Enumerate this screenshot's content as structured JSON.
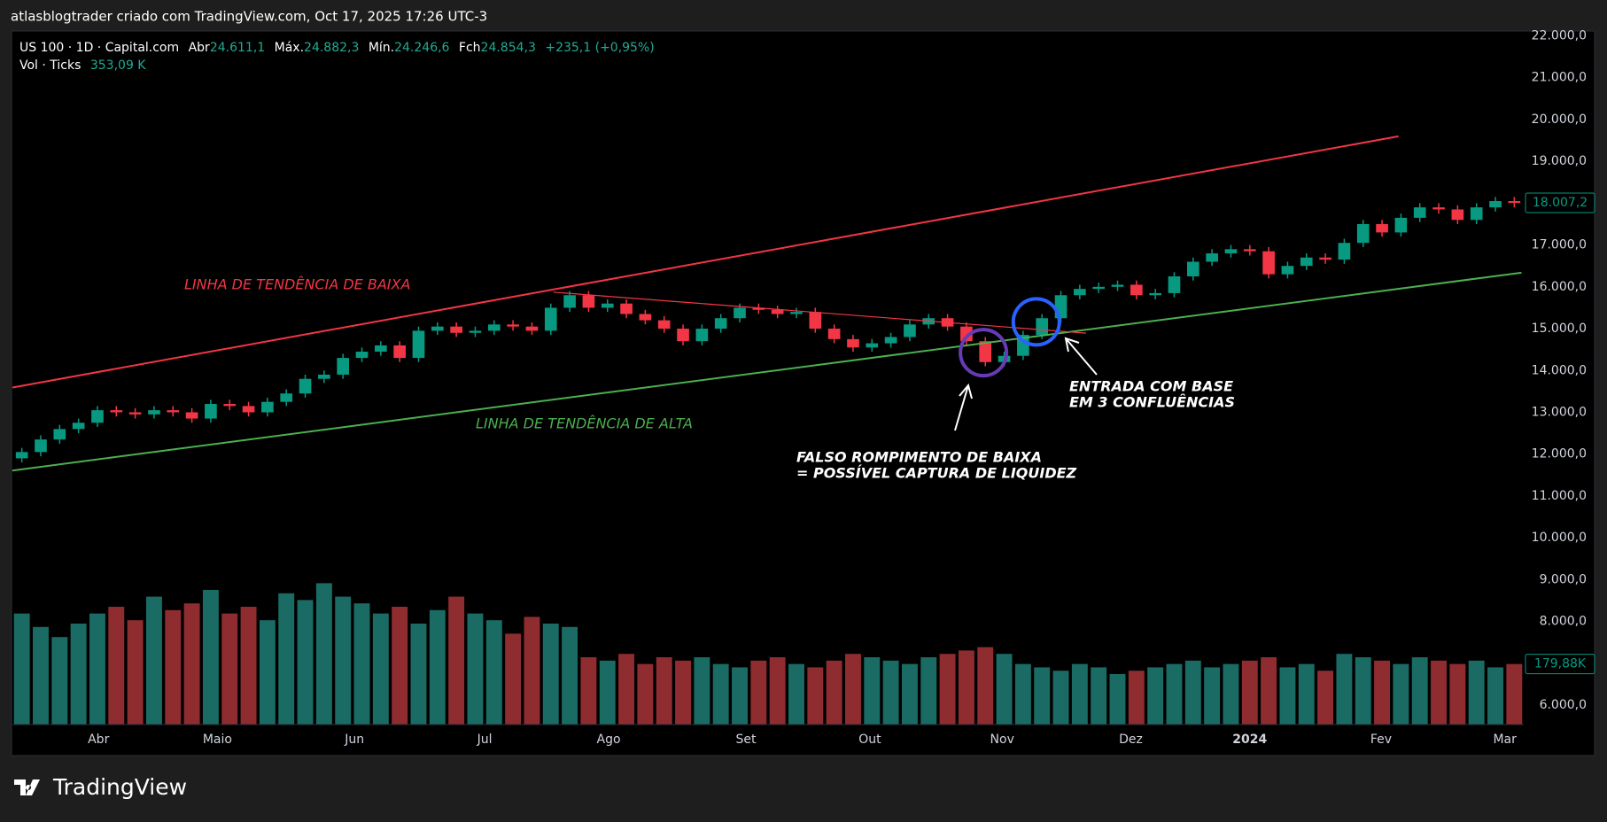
{
  "header": "atlasblogtrader criado com TradingView.com, Oct 17, 2025 17:26 UTC-3",
  "footer": "TradingView",
  "legend": {
    "symbol": "US 100 · 1D · Capital.com",
    "open_label": "Abr",
    "open": "24.611,1",
    "high_label": "Máx.",
    "high": "24.882,3",
    "low_label": "Mín.",
    "low": "24.246,6",
    "close_label": "Fch",
    "close": "24.854,3",
    "change": "+235,1 (+0,95%)",
    "volume_label": "Vol · Ticks",
    "volume": "353,09 K"
  },
  "chart_data": {
    "type": "candlestick",
    "up_color": "#089981",
    "down_color": "#f23645",
    "volume_up_color": "#1a6b64",
    "volume_down_color": "#8f2c30",
    "grid": false,
    "xlim": [
      0,
      80
    ],
    "xticks": [
      {
        "value": 4.56,
        "label": "Abr"
      },
      {
        "value": 10.85,
        "label": "Maio"
      },
      {
        "value": 18.11,
        "label": "Jun"
      },
      {
        "value": 25.0,
        "label": "Jul"
      },
      {
        "value": 31.56,
        "label": "Ago"
      },
      {
        "value": 38.83,
        "label": "Set"
      },
      {
        "value": 45.39,
        "label": "Out"
      },
      {
        "value": 52.39,
        "label": "Nov"
      },
      {
        "value": 59.2,
        "label": "Dez"
      },
      {
        "value": 65.5,
        "label": "2024"
      },
      {
        "value": 72.45,
        "label": "Fev"
      },
      {
        "value": 79.0,
        "label": "Mar"
      }
    ],
    "ylim": [
      6000,
      22000
    ],
    "yticks": [
      {
        "value": 22000,
        "label": "22.000,0"
      },
      {
        "value": 21000,
        "label": "21.000,0"
      },
      {
        "value": 20000,
        "label": "20.000,0"
      },
      {
        "value": 19000,
        "label": "19.000,0"
      },
      {
        "value": 18000,
        "label": "18.000,0"
      },
      {
        "value": 17000,
        "label": "17.000,0"
      },
      {
        "value": 16000,
        "label": "16.000,0"
      },
      {
        "value": 15000,
        "label": "15.000,0"
      },
      {
        "value": 14000,
        "label": "14.000,0"
      },
      {
        "value": 13000,
        "label": "13.000,0"
      },
      {
        "value": 12000,
        "label": "12.000,0"
      },
      {
        "value": 11000,
        "label": "11.000,0"
      },
      {
        "value": 10000,
        "label": "10.000,0"
      },
      {
        "value": 9000,
        "label": "9.000,0"
      },
      {
        "value": 8000,
        "label": "8.000,0"
      },
      {
        "value": 7000,
        "label": "7.000,0"
      },
      {
        "value": 6000,
        "label": "6.000,0"
      }
    ],
    "open": [
      11900,
      12050,
      12350,
      12600,
      12750,
      13050,
      13000,
      12950,
      13050,
      13000,
      12850,
      13200,
      13150,
      13000,
      13250,
      13450,
      13800,
      13900,
      14300,
      14450,
      14600,
      14300,
      14950,
      15050,
      14900,
      14950,
      15100,
      15050,
      14950,
      15500,
      15800,
      15500,
      15600,
      15350,
      15200,
      15000,
      14700,
      15000,
      15250,
      15500,
      15450,
      15350,
      15400,
      15000,
      14750,
      14550,
      14650,
      14800,
      15100,
      15250,
      15050,
      14700,
      14200,
      14350,
      14850,
      15250,
      15800,
      15950,
      16000,
      16050,
      15800,
      15850,
      16250,
      16600,
      16800,
      16900,
      16850,
      16300,
      16500,
      16700,
      16650,
      17050,
      17500,
      17300,
      17650,
      17900,
      17850,
      17600,
      17900,
      18050
    ],
    "high": [
      12150,
      12450,
      12700,
      12850,
      13150,
      13150,
      13100,
      13150,
      13150,
      13100,
      13300,
      13300,
      13250,
      13350,
      13550,
      13900,
      14000,
      14400,
      14550,
      14700,
      14700,
      15050,
      15150,
      15150,
      15050,
      15200,
      15200,
      15150,
      15600,
      15900,
      15900,
      15700,
      15700,
      15450,
      15300,
      15100,
      15100,
      15350,
      15600,
      15600,
      15550,
      15500,
      15500,
      15100,
      14850,
      14750,
      14900,
      15200,
      15350,
      15350,
      15150,
      14800,
      14450,
      14950,
      15350,
      15900,
      16050,
      16100,
      16150,
      16150,
      15950,
      16350,
      16700,
      16900,
      17000,
      17000,
      16950,
      16600,
      16800,
      16800,
      17150,
      17600,
      17600,
      17750,
      18000,
      18000,
      17950,
      18000,
      18150,
      18150
    ],
    "low": [
      11800,
      11950,
      12250,
      12500,
      12650,
      12900,
      12850,
      12850,
      12900,
      12750,
      12750,
      13050,
      12900,
      12900,
      13150,
      13350,
      13700,
      13800,
      14200,
      14350,
      14200,
      14200,
      14850,
      14800,
      14800,
      14850,
      14950,
      14850,
      14850,
      15400,
      15400,
      15400,
      15250,
      15100,
      14900,
      14600,
      14600,
      14900,
      15150,
      15350,
      15250,
      15250,
      14900,
      14650,
      14450,
      14450,
      14550,
      14700,
      15000,
      14950,
      14600,
      14100,
      14100,
      14250,
      14750,
      15150,
      15700,
      15850,
      15900,
      15700,
      15700,
      15750,
      16150,
      16500,
      16700,
      16750,
      16200,
      16200,
      16400,
      16550,
      16550,
      16950,
      17200,
      17200,
      17550,
      17750,
      17500,
      17500,
      17800,
      17900
    ],
    "close": [
      12050,
      12350,
      12600,
      12750,
      13050,
      13000,
      12950,
      13050,
      13000,
      12850,
      13200,
      13150,
      13000,
      13250,
      13450,
      13800,
      13900,
      14300,
      14450,
      14600,
      14300,
      14950,
      15050,
      14900,
      14950,
      15100,
      15050,
      14950,
      15500,
      15800,
      15500,
      15600,
      15350,
      15200,
      15000,
      14700,
      15000,
      15250,
      15500,
      15450,
      15350,
      15400,
      15000,
      14750,
      14550,
      14650,
      14800,
      15100,
      15250,
      15050,
      14700,
      14200,
      14350,
      14850,
      15250,
      15800,
      15950,
      16000,
      16050,
      15800,
      15850,
      16250,
      16600,
      16800,
      16900,
      16850,
      16300,
      16500,
      16700,
      16650,
      17050,
      17500,
      17300,
      17650,
      17900,
      17850,
      17600,
      17900,
      18050,
      18007.2
    ],
    "last_price_label": "18.007,2",
    "volume_ylim": [
      0,
      600
    ],
    "volume": [
      330,
      290,
      260,
      300,
      330,
      350,
      310,
      380,
      340,
      360,
      400,
      330,
      350,
      310,
      390,
      370,
      420,
      380,
      360,
      330,
      350,
      300,
      340,
      380,
      330,
      310,
      270,
      320,
      300,
      290,
      200,
      190,
      210,
      180,
      200,
      190,
      200,
      180,
      170,
      190,
      200,
      180,
      170,
      190,
      210,
      200,
      190,
      180,
      200,
      210,
      220,
      230,
      210,
      180,
      170,
      160,
      180,
      170,
      150,
      160,
      170,
      180,
      190,
      170,
      180,
      190,
      200,
      170,
      180,
      160,
      210,
      200,
      190,
      180,
      200,
      190,
      180,
      190,
      170,
      179.88
    ],
    "last_volume_label": "179,88K",
    "trendlines": [
      {
        "color": "#f23645",
        "x": [
          0,
          73.37
        ],
        "y": [
          13593,
          19598
        ]
      },
      {
        "color": "#4caf50",
        "x": [
          0,
          79.88
        ],
        "y": [
          11608,
          16338
        ]
      },
      {
        "color": "#f23645",
        "x": [
          28.63,
          56.83
        ],
        "y": [
          15873,
          14892
        ]
      }
    ],
    "circles": [
      {
        "color": "#673ab7",
        "x": 51.4,
        "y": 14426
      },
      {
        "color": "#2962ff",
        "x": 54.2,
        "y": 15162
      }
    ],
    "annotations": {
      "downtrend": "LINHA DE TENDÊNCIA DE BAIXA",
      "uptrend": "LINHA DE TENDÊNCIA DE ALTA",
      "false_break_1": "FALSO ROMPIMENTO DE BAIXA",
      "false_break_2": "= POSSÍVEL CAPTURA DE LIQUIDEZ",
      "entry_1": "ENTRADA COM BASE",
      "entry_2": "EM 3 CONFLUÊNCIAS"
    }
  }
}
